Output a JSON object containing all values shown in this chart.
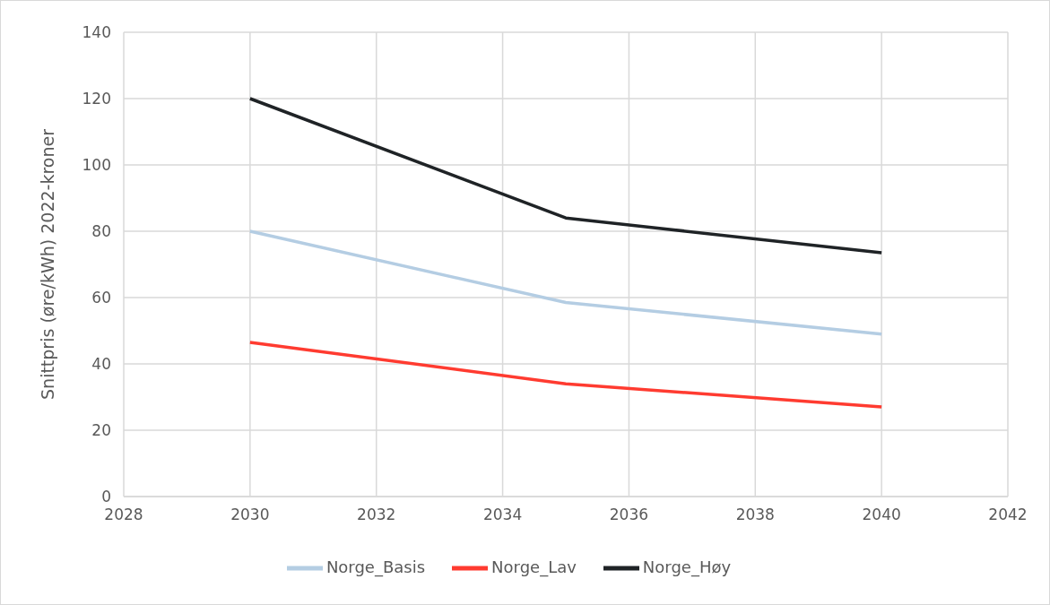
{
  "chart_data": {
    "type": "line",
    "ylabel": "Snittpris (øre/kWh) 2022-kroner",
    "x": [
      2030,
      2035,
      2040
    ],
    "series": [
      {
        "name": "Norge_Basis",
        "color": "#b4cde3",
        "values": [
          80,
          58.5,
          49
        ]
      },
      {
        "name": "Norge_Lav",
        "color": "#ff3b30",
        "values": [
          46.5,
          34,
          27
        ]
      },
      {
        "name": "Norge_Høy",
        "color": "#1f2326",
        "values": [
          120,
          84,
          73.5
        ]
      }
    ],
    "xlim": [
      2028,
      2042
    ],
    "xticks": [
      2028,
      2030,
      2032,
      2034,
      2036,
      2038,
      2040,
      2042
    ],
    "ylim": [
      0,
      140
    ],
    "yticks": [
      0,
      20,
      40,
      60,
      80,
      100,
      120,
      140
    ],
    "grid": true,
    "legend": "bottom",
    "marker": "none",
    "line_style": "solid"
  }
}
